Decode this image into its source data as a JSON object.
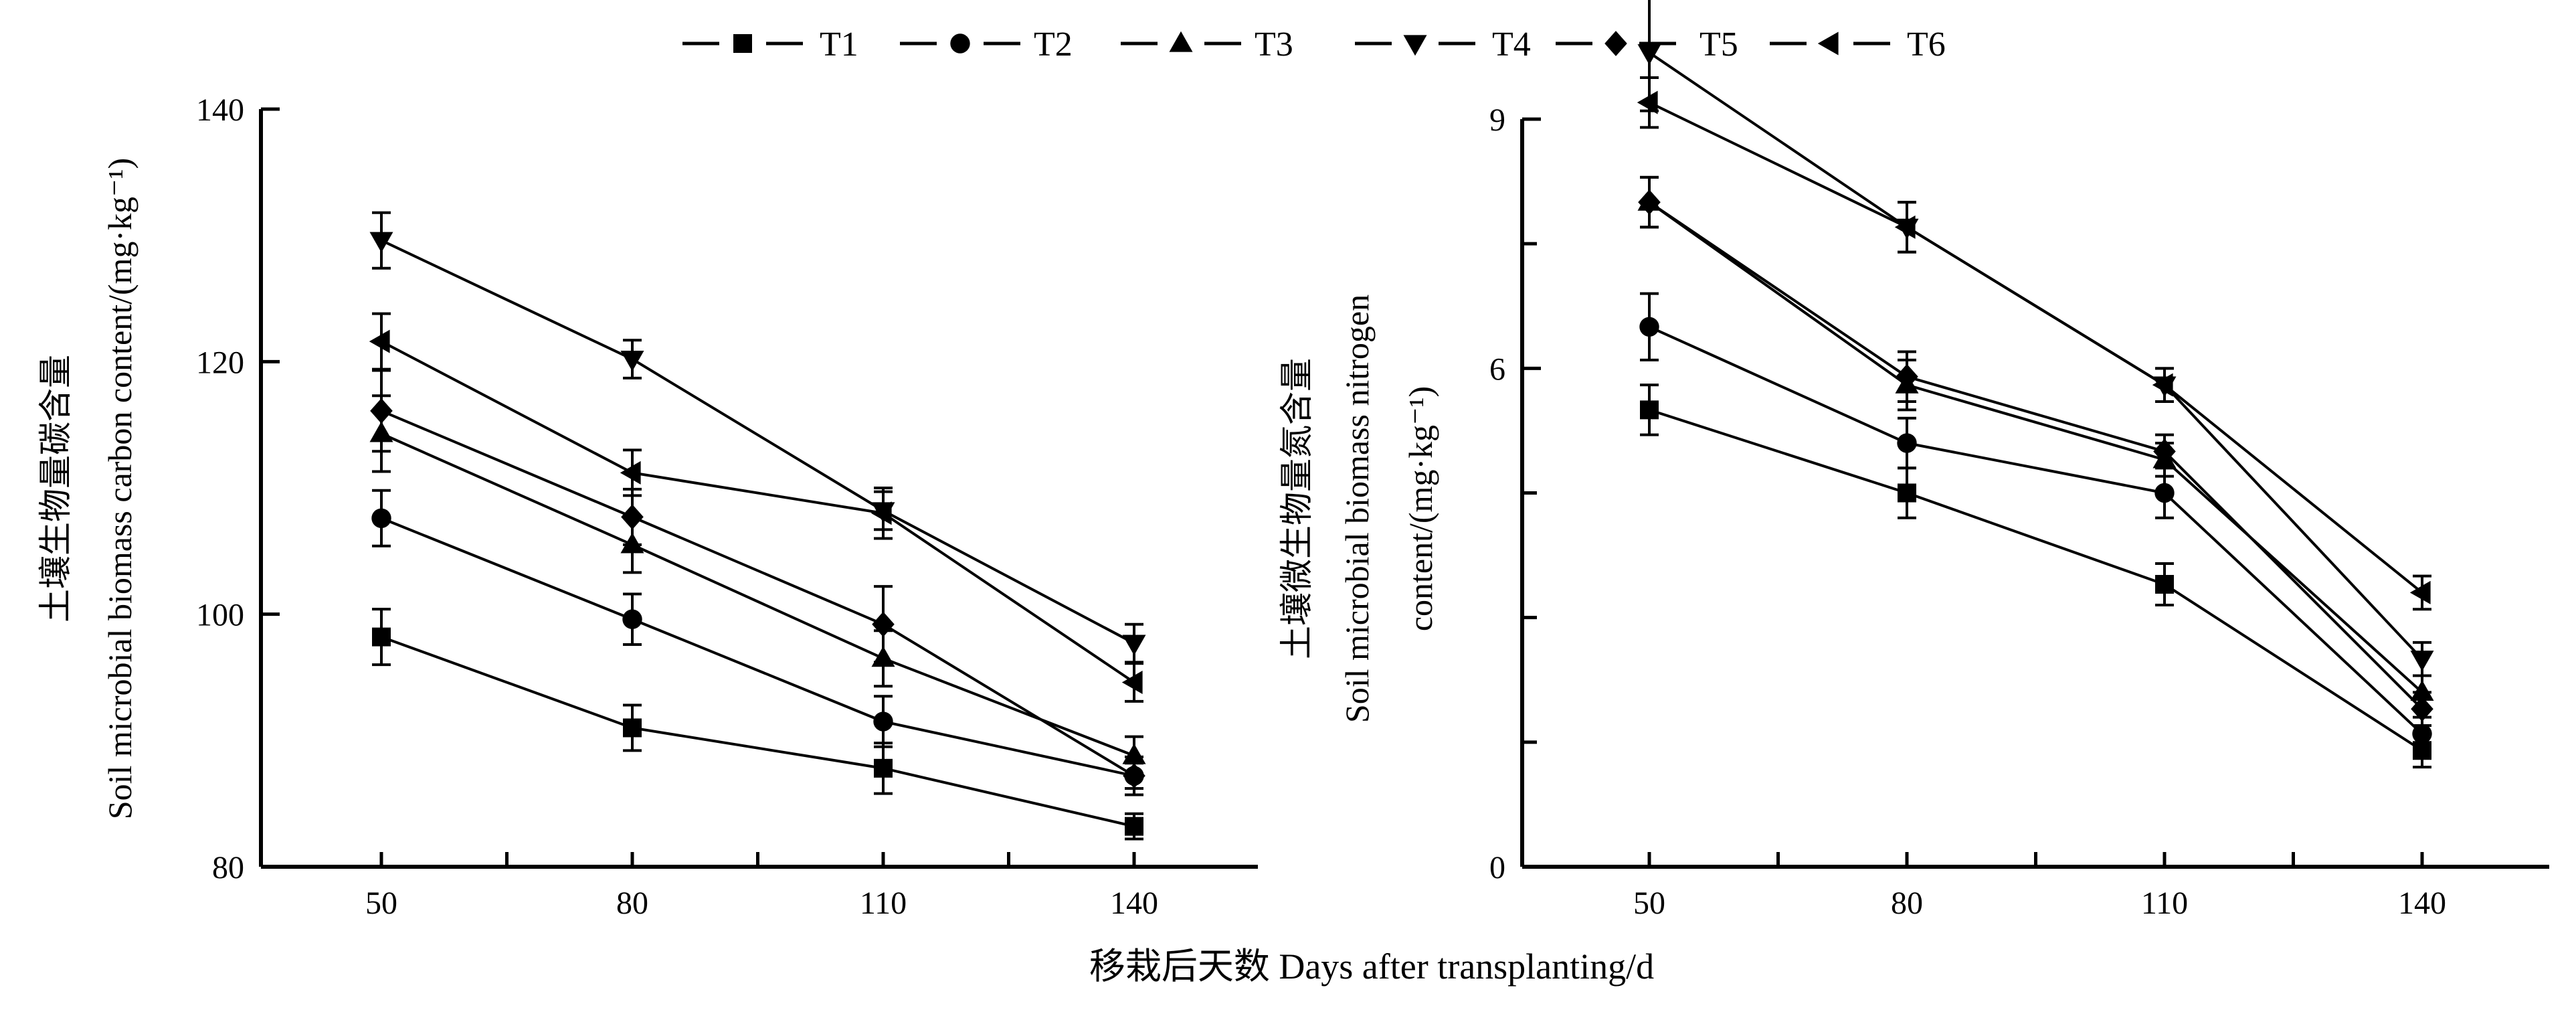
{
  "chart_data": [
    {
      "type": "line",
      "title": "",
      "xlabel": "移栽后天数 Days after transplanting/d",
      "ylabel_cn": "土壤生物量碳含量",
      "ylabel_en": "Soil microbial biomass carbon content/(mg·kg⁻¹)",
      "x": [
        50,
        80,
        110,
        140
      ],
      "ylim": [
        80,
        140
      ],
      "yticks": [
        80,
        100,
        120,
        140
      ],
      "series": [
        {
          "name": "T1",
          "marker": "square",
          "values": [
            98.2,
            91.0,
            87.8,
            83.2
          ],
          "errors": [
            2.2,
            1.8,
            2.0,
            1.0
          ]
        },
        {
          "name": "T2",
          "marker": "circle",
          "values": [
            107.6,
            99.6,
            91.5,
            87.2
          ],
          "errors": [
            2.2,
            2.0,
            2.0,
            1.0
          ]
        },
        {
          "name": "T3",
          "marker": "triangle-up",
          "values": [
            114.3,
            105.5,
            96.5,
            88.8
          ],
          "errors": [
            3.0,
            2.2,
            2.2,
            1.5
          ]
        },
        {
          "name": "T4",
          "marker": "triangle-down",
          "values": [
            129.6,
            120.2,
            108.2,
            97.7
          ],
          "errors": [
            2.2,
            1.5,
            1.5,
            1.5
          ]
        },
        {
          "name": "T5",
          "marker": "diamond",
          "values": [
            116.1,
            107.7,
            99.2,
            87.2
          ],
          "errors": [
            3.2,
            2.2,
            3.0,
            1.5
          ]
        },
        {
          "name": "T6",
          "marker": "triangle-left",
          "values": [
            121.6,
            111.2,
            108.0,
            94.6
          ],
          "errors": [
            2.2,
            1.8,
            2.0,
            1.5
          ]
        }
      ]
    },
    {
      "type": "line",
      "title": "",
      "xlabel": "移栽后天数 Days after transplanting/d",
      "ylabel_cn": "土壤微生物量氮含量",
      "ylabel_en": "Soil microbial biomass nitrogen",
      "ylabel_unit": "content/(mg·kg⁻¹)",
      "x": [
        50,
        80,
        110,
        140
      ],
      "ylim": [
        0,
        9
      ],
      "yticks": [
        0,
        6,
        9
      ],
      "minor_yticks": [
        3,
        1.5,
        4.5,
        7.5
      ],
      "series": [
        {
          "name": "T1",
          "marker": "square",
          "values": [
            5.5,
            4.5,
            3.4,
            1.4
          ],
          "errors": [
            0.3,
            0.3,
            0.25,
            0.2
          ]
        },
        {
          "name": "T2",
          "marker": "circle",
          "values": [
            6.5,
            5.1,
            4.5,
            1.6
          ],
          "errors": [
            0.4,
            0.3,
            0.3,
            0.2
          ]
        },
        {
          "name": "T3",
          "marker": "triangle-up",
          "values": [
            8.0,
            5.8,
            4.9,
            2.1
          ],
          "errors": [
            0.3,
            0.3,
            0.2,
            0.2
          ]
        },
        {
          "name": "T4",
          "marker": "triangle-down",
          "values": [
            9.8,
            7.7,
            5.8,
            2.5
          ],
          "errors": [
            0.7,
            0.3,
            0.2,
            0.2
          ]
        },
        {
          "name": "T5",
          "marker": "diamond",
          "values": [
            8.0,
            5.9,
            5.0,
            1.9
          ],
          "errors": [
            0.3,
            0.3,
            0.2,
            0.2
          ]
        },
        {
          "name": "T6",
          "marker": "triangle-left",
          "values": [
            9.2,
            7.7,
            5.8,
            3.3
          ],
          "errors": [
            0.3,
            0.3,
            0.2,
            0.2
          ]
        }
      ]
    }
  ],
  "legend": {
    "placement": "top-center",
    "entries": [
      "T1",
      "T2",
      "T3",
      "T4",
      "T5",
      "T6"
    ]
  },
  "xlabel_shared": "移栽后天数 Days after transplanting/d",
  "colors": {
    "line": "#000000",
    "background": "#ffffff"
  }
}
